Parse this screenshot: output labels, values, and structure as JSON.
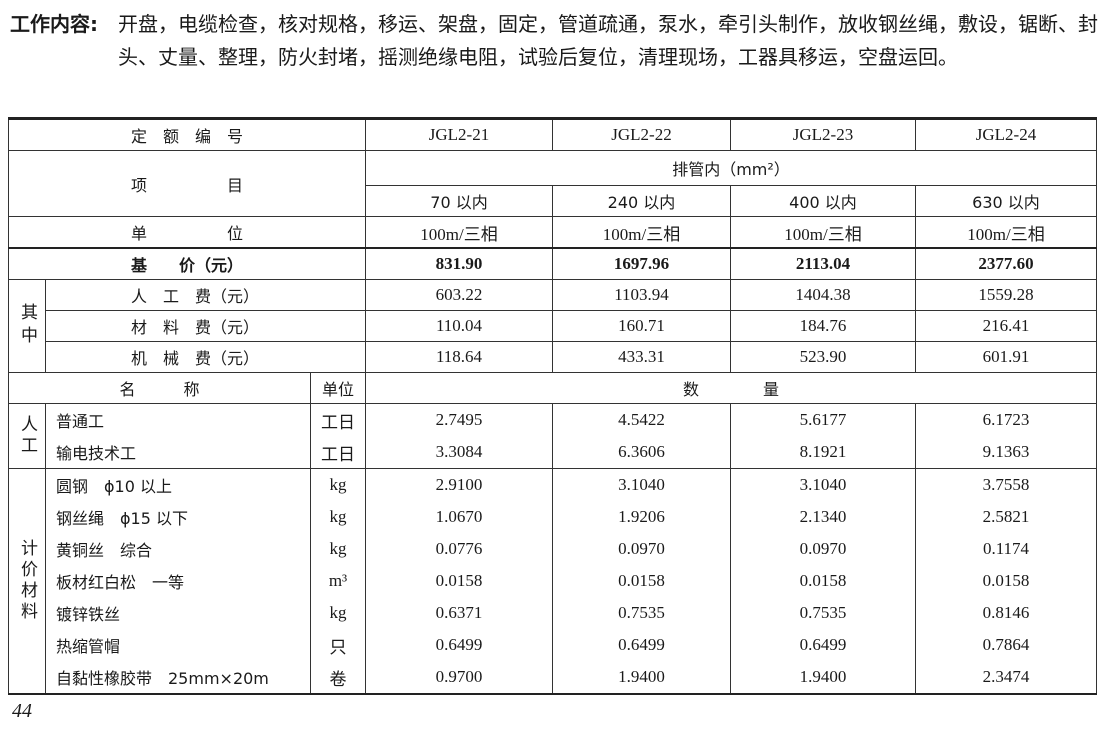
{
  "intro": {
    "label": "工作内容:",
    "text": "开盘，电缆检查，核对规格，移运、架盘，固定，管道疏通，泵水，牵引头制作，放收钢丝绳，敷设，锯断、封头、丈量、整理，防火封堵，摇测绝缘电阻，试验后复位，清理现场，工器具移运，空盘运回。"
  },
  "table": {
    "code_label": "定　额　编　号",
    "codes": [
      "JGL2-21",
      "JGL2-22",
      "JGL2-23",
      "JGL2-24"
    ],
    "item_label": "项　　　　　目",
    "item_group": "排管内（mm²）",
    "items": [
      "70 以内",
      "240 以内",
      "400 以内",
      "630 以内"
    ],
    "unit_label": "单　　　　　位",
    "units": [
      "100m/三相",
      "100m/三相",
      "100m/三相",
      "100m/三相"
    ],
    "base_price_label": "基　　价（元）",
    "base_prices": [
      "831.90",
      "1697.96",
      "2113.04",
      "2377.60"
    ],
    "of_which_label": "其中",
    "costs": [
      {
        "label": "人　工　费（元）",
        "values": [
          "603.22",
          "1103.94",
          "1404.38",
          "1559.28"
        ]
      },
      {
        "label": "材　料　费（元）",
        "values": [
          "110.04",
          "160.71",
          "184.76",
          "216.41"
        ]
      },
      {
        "label": "机　械　费（元）",
        "values": [
          "118.64",
          "433.31",
          "523.90",
          "601.91"
        ]
      }
    ],
    "name_label": "名　　　称",
    "unit_col_label": "单位",
    "quantity_label": "数　　　　量",
    "labor_group": "人工",
    "labor": [
      {
        "name": "普通工",
        "unit": "工日",
        "values": [
          "2.7495",
          "4.5422",
          "5.6177",
          "6.1723"
        ]
      },
      {
        "name": "输电技术工",
        "unit": "工日",
        "values": [
          "3.3084",
          "6.3606",
          "8.1921",
          "9.1363"
        ]
      }
    ],
    "material_group": "计价材料",
    "materials": [
      {
        "name": "圆钢　ϕ10 以上",
        "unit": "kg",
        "values": [
          "2.9100",
          "3.1040",
          "3.1040",
          "3.7558"
        ]
      },
      {
        "name": "钢丝绳　ϕ15 以下",
        "unit": "kg",
        "values": [
          "1.0670",
          "1.9206",
          "2.1340",
          "2.5821"
        ]
      },
      {
        "name": "黄铜丝　综合",
        "unit": "kg",
        "values": [
          "0.0776",
          "0.0970",
          "0.0970",
          "0.1174"
        ]
      },
      {
        "name": "板材红白松　一等",
        "unit": "m³",
        "values": [
          "0.0158",
          "0.0158",
          "0.0158",
          "0.0158"
        ]
      },
      {
        "name": "镀锌铁丝",
        "unit": "kg",
        "values": [
          "0.6371",
          "0.7535",
          "0.7535",
          "0.8146"
        ]
      },
      {
        "name": "热缩管帽",
        "unit": "只",
        "values": [
          "0.6499",
          "0.6499",
          "0.6499",
          "0.7864"
        ]
      },
      {
        "name": "自黏性橡胶带　25mm×20m",
        "unit": "卷",
        "values": [
          "0.9700",
          "1.9400",
          "1.9400",
          "2.3474"
        ]
      }
    ]
  },
  "page_number": "44"
}
